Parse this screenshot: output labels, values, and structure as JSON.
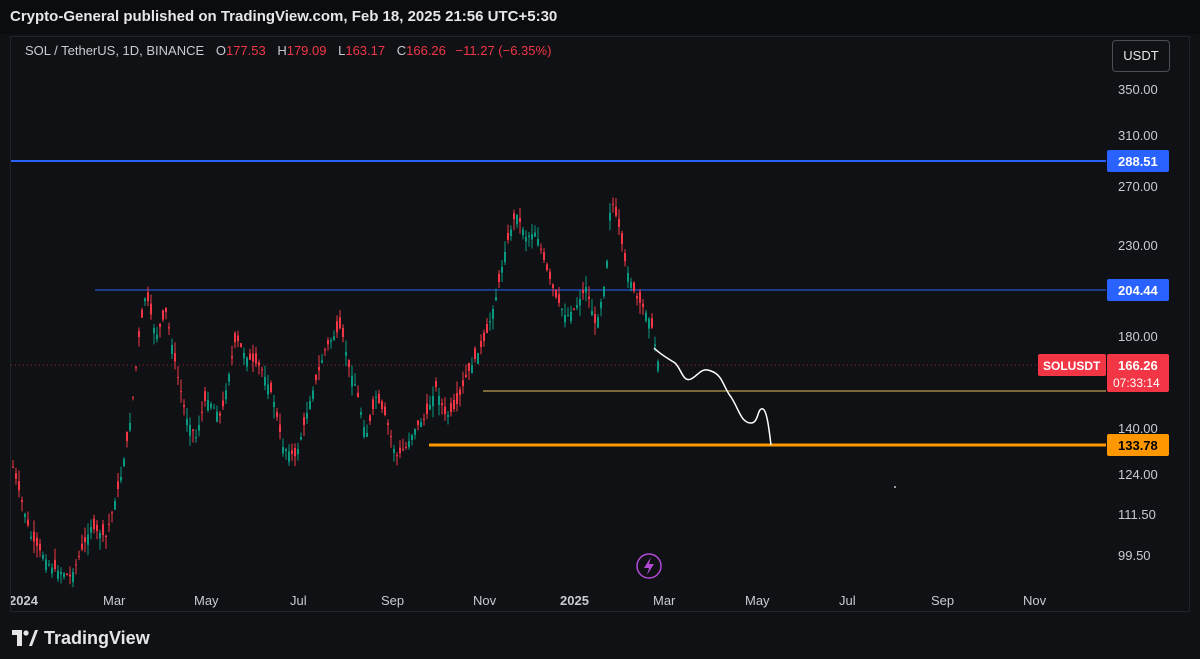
{
  "header": {
    "publish_text": "Crypto-General published on TradingView.com, Feb 18, 2025 21:56 UTC+5:30"
  },
  "legend": {
    "symbol": "SOL / TetherUS, 1D, BINANCE",
    "o_label": "O",
    "o_value": "177.53",
    "h_label": "H",
    "h_value": "179.09",
    "l_label": "L",
    "l_value": "163.17",
    "c_label": "C",
    "c_value": "166.26",
    "change": "−11.27 (−6.35%)"
  },
  "currency_button": "USDT",
  "price_axis": {
    "ticks": [
      "350.00",
      "310.00",
      "270.00",
      "230.00",
      "180.00",
      "140.00",
      "124.00",
      "111.50",
      "99.50"
    ]
  },
  "time_axis": {
    "labels": [
      "2024",
      "Mar",
      "May",
      "Jul",
      "Sep",
      "Nov",
      "2025",
      "Mar",
      "May",
      "Jul",
      "Sep",
      "Nov"
    ]
  },
  "levels": {
    "resistance_high": "288.51",
    "resistance_mid": "204.44",
    "support_low": "133.78",
    "colors": {
      "blue": "#2962ff",
      "orange": "#ff9800",
      "yellow": "#e6c35c",
      "red": "#f23645",
      "green": "#089981"
    }
  },
  "current_price": {
    "symbol_tag": "SOLUSDT",
    "price": "166.26",
    "countdown": "07:33:14"
  },
  "footer": {
    "brand": "TradingView"
  },
  "icons": {
    "lightning": "lightning-icon",
    "logo": "tradingview-logo-icon"
  }
}
